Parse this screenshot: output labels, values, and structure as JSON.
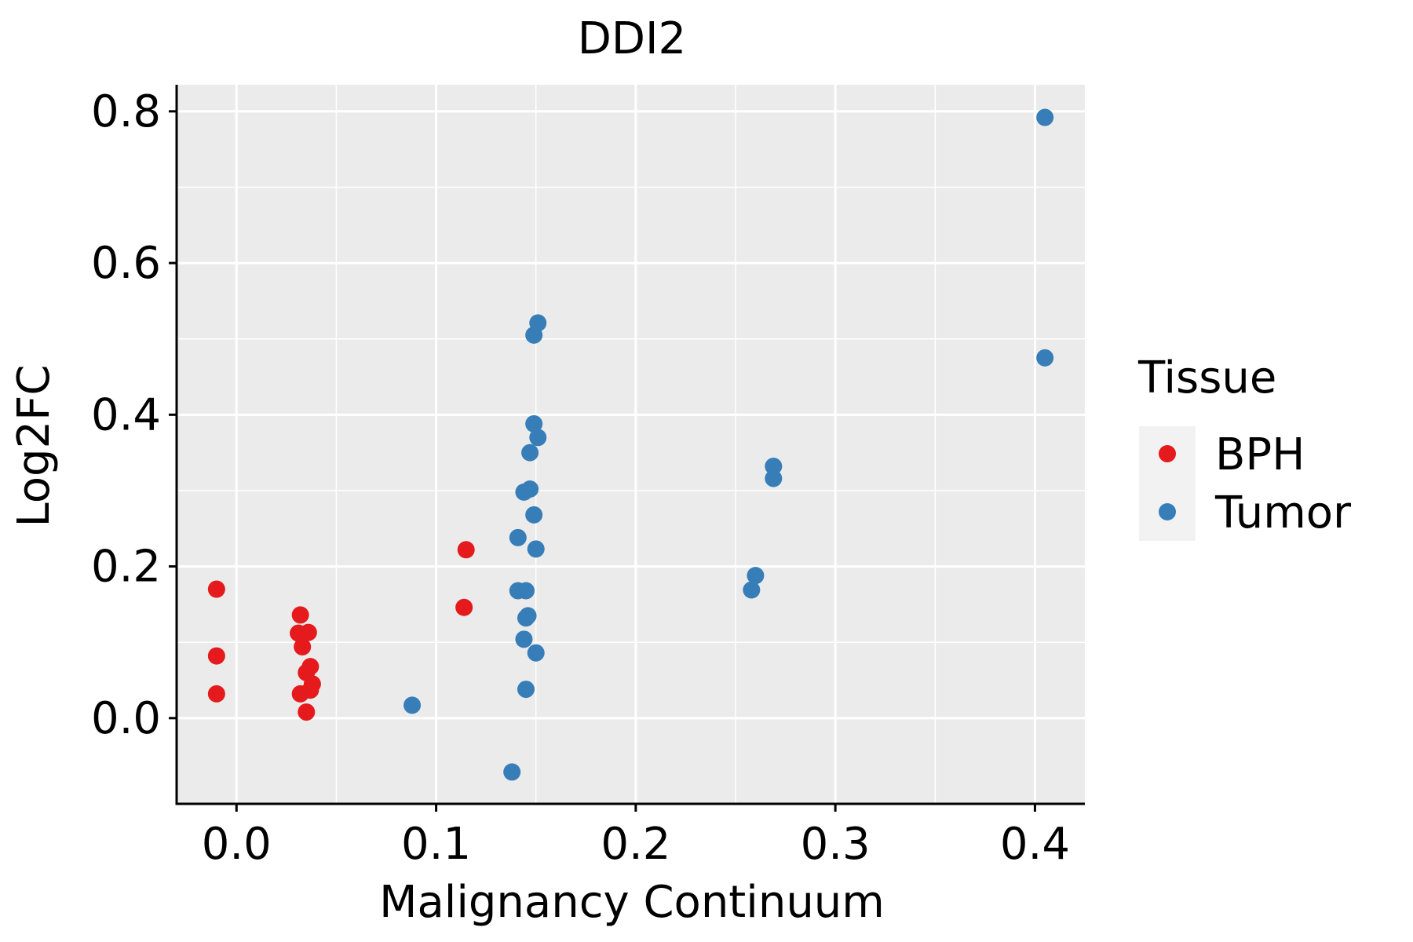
{
  "chart_data": {
    "type": "scatter",
    "title": "DDI2",
    "xlabel": "Malignancy Continuum",
    "ylabel": "Log2FC",
    "xlim": [
      -0.03,
      0.425
    ],
    "ylim": [
      -0.113,
      0.835
    ],
    "x_ticks": [
      0.0,
      0.1,
      0.2,
      0.3,
      0.4
    ],
    "x_tick_labels": [
      "0.0",
      "0.1",
      "0.2",
      "0.3",
      "0.4"
    ],
    "y_ticks": [
      0.0,
      0.2,
      0.4,
      0.6,
      0.8
    ],
    "y_tick_labels": [
      "0.0",
      "0.2",
      "0.4",
      "0.6",
      "0.8"
    ],
    "grid": true,
    "legend": {
      "title": "Tissue",
      "position": "right"
    },
    "series": [
      {
        "name": "BPH",
        "color": "#E41A1C",
        "points": [
          [
            -0.01,
            0.17
          ],
          [
            -0.01,
            0.082
          ],
          [
            -0.01,
            0.032
          ],
          [
            0.032,
            0.136
          ],
          [
            0.031,
            0.112
          ],
          [
            0.036,
            0.113
          ],
          [
            0.033,
            0.094
          ],
          [
            0.037,
            0.068
          ],
          [
            0.035,
            0.06
          ],
          [
            0.038,
            0.045
          ],
          [
            0.037,
            0.037
          ],
          [
            0.032,
            0.032
          ],
          [
            0.035,
            0.008
          ],
          [
            0.115,
            0.222
          ],
          [
            0.114,
            0.146
          ]
        ]
      },
      {
        "name": "Tumor",
        "color": "#377EB8",
        "points": [
          [
            0.405,
            0.792
          ],
          [
            0.405,
            0.475
          ],
          [
            0.151,
            0.521
          ],
          [
            0.149,
            0.505
          ],
          [
            0.149,
            0.388
          ],
          [
            0.151,
            0.37
          ],
          [
            0.147,
            0.35
          ],
          [
            0.147,
            0.302
          ],
          [
            0.144,
            0.298
          ],
          [
            0.149,
            0.268
          ],
          [
            0.141,
            0.238
          ],
          [
            0.15,
            0.223
          ],
          [
            0.141,
            0.168
          ],
          [
            0.145,
            0.168
          ],
          [
            0.146,
            0.135
          ],
          [
            0.145,
            0.132
          ],
          [
            0.144,
            0.104
          ],
          [
            0.15,
            0.086
          ],
          [
            0.145,
            0.038
          ],
          [
            0.088,
            0.017
          ],
          [
            0.138,
            -0.071
          ],
          [
            0.269,
            0.332
          ],
          [
            0.269,
            0.316
          ],
          [
            0.26,
            0.188
          ],
          [
            0.258,
            0.169
          ]
        ]
      }
    ]
  }
}
